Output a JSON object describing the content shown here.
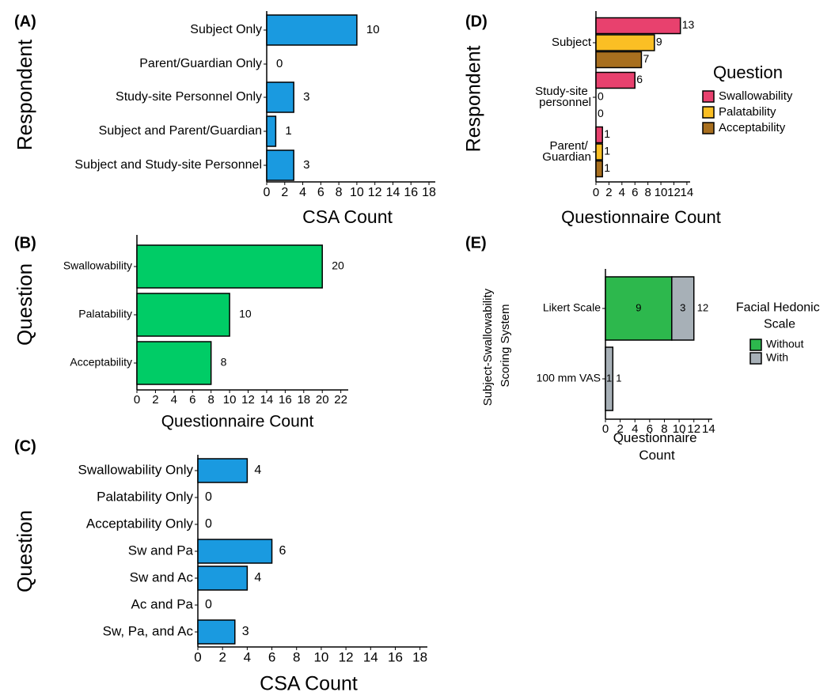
{
  "chart_data": [
    {
      "type": "bar",
      "panel_label": "(A)",
      "categories": [
        "Subject Only",
        "Parent/Guardian Only",
        "Study-site Personnel Only",
        "Subject and Parent/Guardian",
        "Subject and Study-site Personnel"
      ],
      "values": [
        10,
        0,
        3,
        1,
        3
      ],
      "color": "#1a9ae0",
      "xlabel": "CSA Count",
      "ylabel": "Respondent",
      "xlim": [
        0,
        18.7
      ],
      "xticks": [
        0,
        2,
        4,
        6,
        8,
        10,
        12,
        14,
        16,
        18
      ]
    },
    {
      "type": "bar",
      "panel_label": "(B)",
      "categories": [
        "Swallowability",
        "Palatability",
        "Acceptability"
      ],
      "values": [
        20,
        10,
        8
      ],
      "color": "#00cc66",
      "xlabel": "Questionnaire Count",
      "ylabel": "Question",
      "xlim": [
        0,
        22.8
      ],
      "xticks": [
        0,
        2,
        4,
        6,
        8,
        10,
        12,
        14,
        16,
        18,
        20,
        22
      ]
    },
    {
      "type": "bar",
      "panel_label": "(C)",
      "categories": [
        "Swallowability Only",
        "Palatability Only",
        "Acceptability Only",
        "Sw and Pa",
        "Sw and Ac",
        "Ac and Pa",
        "Sw, Pa, and Ac"
      ],
      "values": [
        4,
        0,
        0,
        6,
        4,
        0,
        3
      ],
      "color": "#1a9ae0",
      "xlabel": "CSA Count",
      "ylabel": "Question",
      "xlim": [
        0,
        18.6
      ],
      "xticks": [
        0,
        2,
        4,
        6,
        8,
        10,
        12,
        14,
        16,
        18
      ]
    },
    {
      "type": "bar",
      "panel_label": "(D)",
      "categories": [
        "Subject",
        "Study-site personnel",
        "Parent/ Guardian"
      ],
      "series": [
        {
          "name": "Swallowability",
          "color": "#e8416e",
          "values": [
            13,
            6,
            1
          ]
        },
        {
          "name": "Palatability",
          "color": "#fbbf24",
          "values": [
            9,
            0,
            1
          ]
        },
        {
          "name": "Acceptability",
          "color": "#a86f1f",
          "values": [
            7,
            0,
            1
          ]
        }
      ],
      "legend_title": "Question",
      "legend": "right",
      "xlabel": "Questionnaire Count",
      "ylabel": "Respondent",
      "xlim": [
        0,
        14.5
      ],
      "xticks": [
        0,
        2,
        4,
        6,
        8,
        10,
        12,
        14
      ]
    },
    {
      "type": "bar",
      "stacked": true,
      "panel_label": "(E)",
      "categories": [
        "Likert Scale",
        "100 mm VAS"
      ],
      "series": [
        {
          "name": "Without",
          "color": "#2db84d",
          "values": [
            9,
            null
          ]
        },
        {
          "name": "With",
          "color": "#a7b0b7",
          "values": [
            3,
            1
          ]
        }
      ],
      "totals": [
        12,
        1
      ],
      "legend_title": "Facial Hedonic Scale",
      "legend": "right",
      "xlabel": "Questionnaire Count",
      "ylabel": "Subject-Swallowability Scoring System",
      "xlim": [
        0,
        14.5
      ],
      "xticks": [
        0,
        2,
        4,
        6,
        8,
        10,
        12,
        14
      ]
    }
  ]
}
